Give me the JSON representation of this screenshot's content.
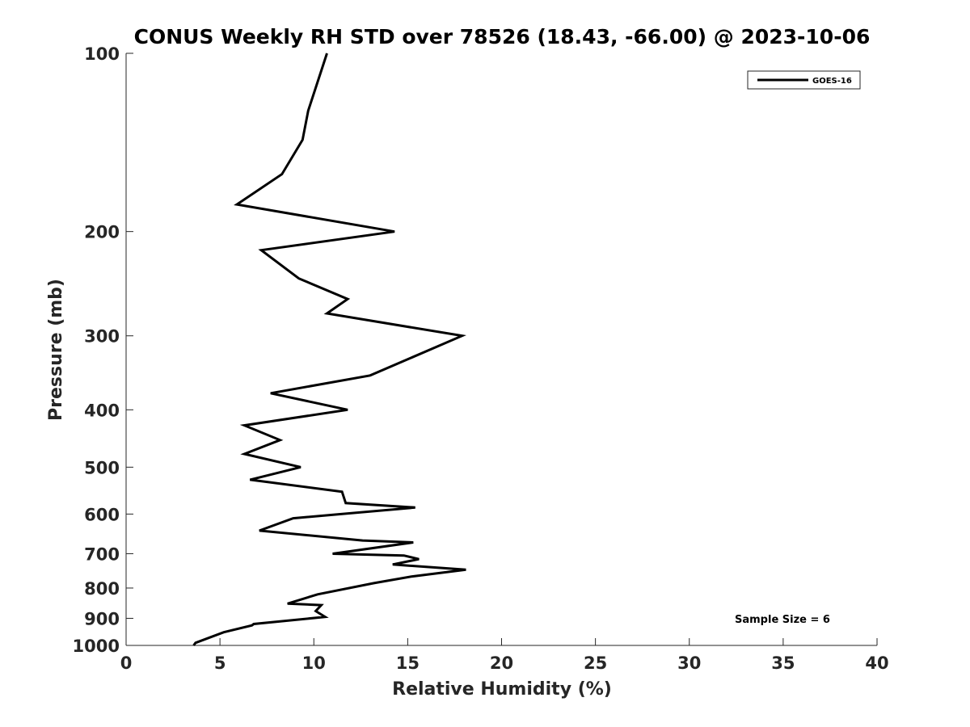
{
  "chart_data": {
    "type": "line",
    "title": "CONUS Weekly RH STD over 78526 (18.43, -66.00) @ 2023-10-06",
    "xlabel": "Relative Humidity (%)",
    "ylabel": "Pressure (mb)",
    "xlim": [
      0,
      40
    ],
    "ylim": [
      100,
      1000
    ],
    "y_scale": "log",
    "y_reversed": true,
    "x_ticks": [
      0,
      5,
      10,
      15,
      20,
      25,
      30,
      35,
      40
    ],
    "y_ticks": [
      100,
      200,
      300,
      400,
      500,
      600,
      700,
      800,
      900,
      1000
    ],
    "grid": false,
    "legend_position": "top-right",
    "series": [
      {
        "name": "GOES-16",
        "color": "#000000",
        "x": [
          10.7,
          9.7,
          9.4,
          8.3,
          5.9,
          14.3,
          7.2,
          9.2,
          11.8,
          10.7,
          17.9,
          13.0,
          7.7,
          11.8,
          6.3,
          8.2,
          6.3,
          9.3,
          6.6,
          11.5,
          11.7,
          15.4,
          8.9,
          7.1,
          12.6,
          15.3,
          11.0,
          14.8,
          15.6,
          14.2,
          18.1,
          15.2,
          13.2,
          10.2,
          8.6,
          10.4,
          10.1,
          10.6,
          6.8,
          6.7,
          5.2,
          3.7,
          3.6
        ],
        "y": [
          100,
          125,
          140,
          160,
          180,
          200,
          215,
          240,
          260,
          275,
          300,
          350,
          375,
          400,
          425,
          450,
          475,
          500,
          525,
          550,
          575,
          585,
          610,
          640,
          665,
          670,
          700,
          705,
          715,
          730,
          745,
          765,
          785,
          820,
          850,
          855,
          875,
          895,
          920,
          925,
          950,
          990,
          1000
        ]
      }
    ],
    "annotations": [
      "Sample Size = 6"
    ]
  }
}
